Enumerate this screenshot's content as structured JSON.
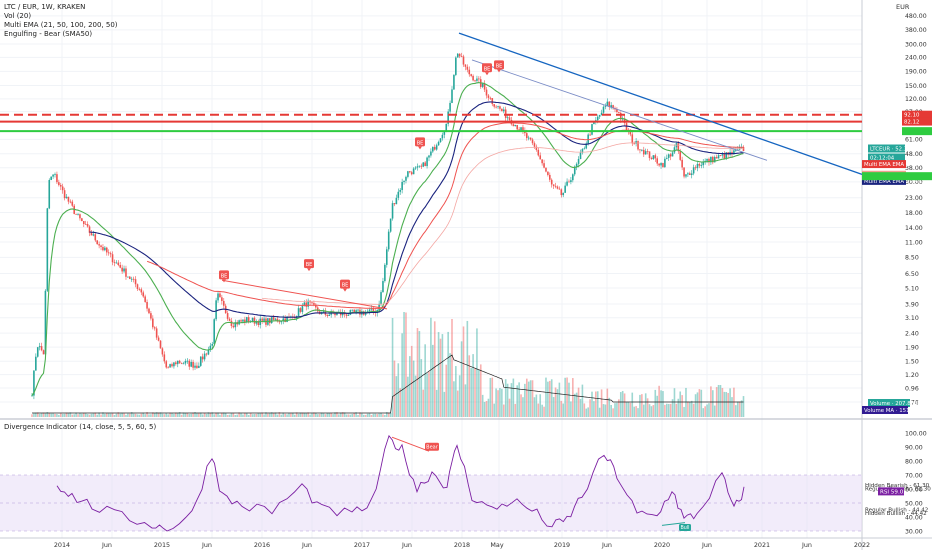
{
  "header": {
    "symbol_line": "LTC / EUR, 1W, KRAKEN",
    "indicators": [
      "Vol (20)",
      "Multi EMA (21, 50, 100, 200, 50)",
      "Engulfing - Bear (SMA50)"
    ]
  },
  "currency_label": "EUR",
  "price_axis_ticks": [
    "480.00",
    "380.00",
    "300.00",
    "240.00",
    "190.00",
    "150.00",
    "120.00",
    "97.00",
    "61.00",
    "48.00",
    "38.00",
    "30.00",
    "23.00",
    "18.00",
    "14.00",
    "11.00",
    "8.50",
    "6.50",
    "5.10",
    "3.90",
    "3.10",
    "2.40",
    "1.90",
    "1.50",
    "1.20",
    "0.96",
    "0.76"
  ],
  "lower_panel": {
    "title": "Divergence Indicator (14, close, 5, 5, 60, 5)",
    "ticks": [
      "100.00",
      "90.00",
      "80.00",
      "70.00",
      "60.00",
      "50.00",
      "40.00",
      "30.00"
    ],
    "labels": [
      "Hidden Bearish - 61.30",
      "Regular Bearish - 61.30",
      "RSI 59.05",
      "Regular Bullish - 44.42",
      "Hidden Bullish - 44.42"
    ],
    "markers": [
      "Bear",
      "Bull"
    ]
  },
  "time_axis": [
    "2014",
    "Jun",
    "2015",
    "Jun",
    "2016",
    "Jun",
    "2017",
    "Jun",
    "2018",
    "May",
    "2019",
    "Jun",
    "2020",
    "Jun",
    "2021",
    "Jun",
    "2022"
  ],
  "price_tags": [
    {
      "text": "92.10",
      "color": "#e53935"
    },
    {
      "text": "82.12",
      "color": "#e53935"
    },
    {
      "text": "",
      "color": "#2ecc40"
    },
    {
      "text": "LTCEUR · 52.38",
      "color": "#26a69a"
    },
    {
      "text": "02:12:04",
      "color": "#26a69a"
    },
    {
      "text": "Multi EMA EMA 5 · 55.47",
      "color": "#e53935"
    },
    {
      "text": "Multi EMA EMA 4 · 49.62",
      "color": "#f0a090"
    },
    {
      "text": "Multi EMA EMA 2 · 47.90",
      "color": "#1a237e"
    },
    {
      "text": "",
      "color": "#2ecc40"
    },
    {
      "text": "Volume · 207.883K",
      "color": "#26a69a"
    },
    {
      "text": "Volume MA · 151.214K",
      "color": "#311b92"
    }
  ],
  "pattern_markers": [
    "BE",
    "BE",
    "BE",
    "BE",
    "BE",
    "BE"
  ],
  "colors": {
    "up": "#26a69a",
    "down": "#ef5350",
    "ema21": "#4caf50",
    "ema50": "#1a237e",
    "ema200": "#ef5350",
    "resistance_red": "#e53935",
    "support_green": "#2ecc40",
    "trendline": "#1565c0",
    "rsi": "#7b1fa2",
    "rsi_band": "#e8dcf5"
  },
  "chart_data": {
    "type": "candlestick",
    "title": "LTC / EUR, 1W, KRAKEN",
    "y_scale": "log",
    "ylim": [
      0.7,
      600
    ],
    "x_range": [
      "2013-09",
      "2022-06"
    ],
    "approx_close_series": [
      {
        "date": "2013-11",
        "close": 32
      },
      {
        "date": "2014-01",
        "close": 16
      },
      {
        "date": "2014-06",
        "close": 7
      },
      {
        "date": "2015-01",
        "close": 1.3
      },
      {
        "date": "2015-07",
        "close": 3.5
      },
      {
        "date": "2016-01",
        "close": 2.9
      },
      {
        "date": "2016-07",
        "close": 3.3
      },
      {
        "date": "2017-01",
        "close": 3.4
      },
      {
        "date": "2017-06",
        "close": 30
      },
      {
        "date": "2017-12",
        "close": 250
      },
      {
        "date": "2018-06",
        "close": 80
      },
      {
        "date": "2018-12",
        "close": 25
      },
      {
        "date": "2019-06",
        "close": 110
      },
      {
        "date": "2019-12",
        "close": 40
      },
      {
        "date": "2020-03",
        "close": 32
      },
      {
        "date": "2020-11",
        "close": 52.38
      }
    ],
    "horizontal_levels": [
      {
        "value": 92.1,
        "style": "dashed",
        "color": "#e53935"
      },
      {
        "value": 82.12,
        "style": "solid",
        "color": "#e53935"
      },
      {
        "value": 70,
        "style": "solid",
        "color": "#2ecc40"
      }
    ]
  }
}
